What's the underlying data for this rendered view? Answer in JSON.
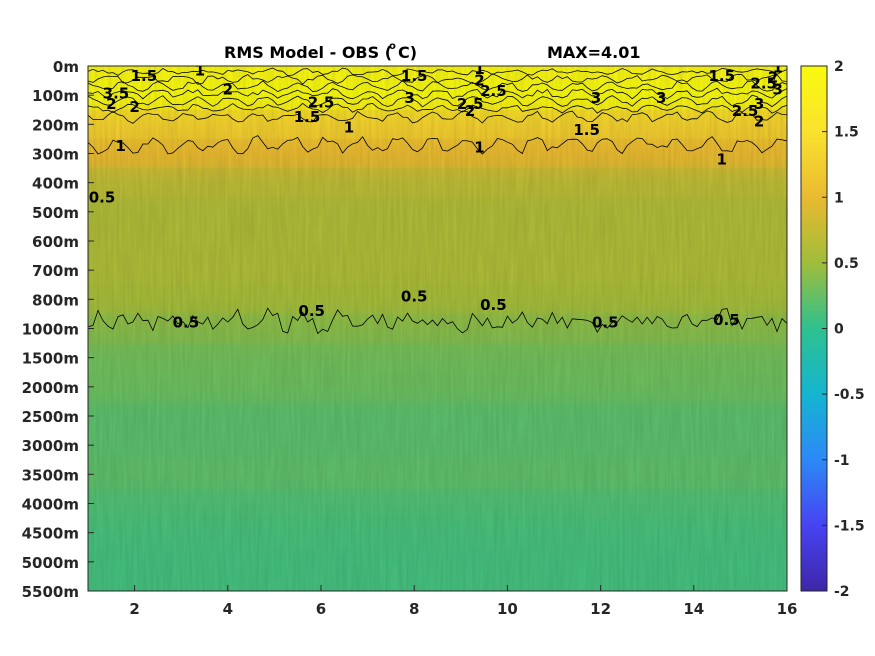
{
  "chart_data": {
    "type": "heatmap",
    "title_main": "RMS Model - OBS (",
    "title_sup": "o",
    "title_end": "C)",
    "title_max": "MAX=4.01",
    "x_ticks": [
      "2",
      "4",
      "6",
      "8",
      "10",
      "12",
      "14",
      "16"
    ],
    "x_values": [
      2,
      4,
      6,
      8,
      10,
      12,
      14,
      16
    ],
    "xlim": [
      1,
      16
    ],
    "y_ticks": [
      "0m",
      "100m",
      "200m",
      "300m",
      "400m",
      "500m",
      "600m",
      "700m",
      "800m",
      "1000m",
      "1500m",
      "2000m",
      "2500m",
      "3000m",
      "3500m",
      "4000m",
      "4500m",
      "5000m",
      "5500m"
    ],
    "colorbar": {
      "ticks": [
        "2",
        "1.5",
        "1",
        "0.5",
        "0",
        "-0.5",
        "-1",
        "-1.5",
        "-2"
      ],
      "range": [
        -2,
        2
      ],
      "colormap": [
        "#3e26a8",
        "#4743f2",
        "#2c89f7",
        "#15b5d1",
        "#2ec18f",
        "#a0bd3a",
        "#eaba30",
        "#fae22e",
        "#f9fb0e"
      ]
    },
    "depth_bands": [
      {
        "depth": "0m",
        "value": 1.9
      },
      {
        "depth": "100m",
        "value": 2.0
      },
      {
        "depth": "200m",
        "value": 1.3
      },
      {
        "depth": "300m",
        "value": 1.0
      },
      {
        "depth": "400m",
        "value": 0.7
      },
      {
        "depth": "500m",
        "value": 0.6
      },
      {
        "depth": "600m",
        "value": 0.6
      },
      {
        "depth": "700m",
        "value": 0.6
      },
      {
        "depth": "800m",
        "value": 0.55
      },
      {
        "depth": "1000m",
        "value": 0.4
      },
      {
        "depth": "1500m",
        "value": 0.3
      },
      {
        "depth": "2000m",
        "value": 0.28
      },
      {
        "depth": "2500m",
        "value": 0.2
      },
      {
        "depth": "3000m",
        "value": 0.2
      },
      {
        "depth": "3500m",
        "value": 0.22
      },
      {
        "depth": "4000m",
        "value": 0.15
      },
      {
        "depth": "4500m",
        "value": 0.12
      },
      {
        "depth": "5000m",
        "value": 0.1
      },
      {
        "depth": "5500m",
        "value": 0.1
      }
    ],
    "contour_labels": [
      {
        "text": "1",
        "x": 3.4,
        "y": 0.15
      },
      {
        "text": "1.5",
        "x": 2.2,
        "y": 0.35
      },
      {
        "text": "2",
        "x": 4.0,
        "y": 0.8
      },
      {
        "text": "3.5",
        "x": 1.6,
        "y": 0.95
      },
      {
        "text": "2",
        "x": 1.5,
        "y": 1.3
      },
      {
        "text": "2",
        "x": 2.0,
        "y": 1.4
      },
      {
        "text": "1.5",
        "x": 8.0,
        "y": 0.35
      },
      {
        "text": "1",
        "x": 9.4,
        "y": 0.1
      },
      {
        "text": "2",
        "x": 9.4,
        "y": 0.5
      },
      {
        "text": "2.5",
        "x": 9.7,
        "y": 0.85
      },
      {
        "text": "2.5",
        "x": 6.0,
        "y": 1.25
      },
      {
        "text": "3",
        "x": 7.9,
        "y": 1.1
      },
      {
        "text": "2.5",
        "x": 9.2,
        "y": 1.3
      },
      {
        "text": "2",
        "x": 9.2,
        "y": 1.55
      },
      {
        "text": "1.5",
        "x": 5.7,
        "y": 1.75
      },
      {
        "text": "1",
        "x": 6.6,
        "y": 2.1
      },
      {
        "text": "3",
        "x": 11.9,
        "y": 1.1
      },
      {
        "text": "3",
        "x": 13.3,
        "y": 1.1
      },
      {
        "text": "1.5",
        "x": 11.7,
        "y": 2.2
      },
      {
        "text": "1",
        "x": 9.4,
        "y": 2.8
      },
      {
        "text": "1",
        "x": 1.7,
        "y": 2.75
      },
      {
        "text": "1",
        "x": 14.6,
        "y": 3.2
      },
      {
        "text": "1.5",
        "x": 14.6,
        "y": 0.35
      },
      {
        "text": "2.5",
        "x": 15.5,
        "y": 0.6
      },
      {
        "text": "1",
        "x": 15.8,
        "y": 0.05
      },
      {
        "text": "2",
        "x": 15.7,
        "y": 0.4
      },
      {
        "text": "3",
        "x": 15.8,
        "y": 0.8
      },
      {
        "text": "3",
        "x": 15.4,
        "y": 1.3
      },
      {
        "text": "2.5",
        "x": 15.1,
        "y": 1.55
      },
      {
        "text": "2",
        "x": 15.4,
        "y": 1.9
      },
      {
        "text": "0.5",
        "x": 1.3,
        "y": 4.5
      },
      {
        "text": "0.5",
        "x": 3.1,
        "y": 8.8
      },
      {
        "text": "0.5",
        "x": 5.8,
        "y": 8.4
      },
      {
        "text": "0.5",
        "x": 8.0,
        "y": 7.9
      },
      {
        "text": "0.5",
        "x": 9.7,
        "y": 8.2
      },
      {
        "text": "0.5",
        "x": 12.1,
        "y": 8.8
      },
      {
        "text": "0.5",
        "x": 14.7,
        "y": 8.7
      }
    ]
  }
}
